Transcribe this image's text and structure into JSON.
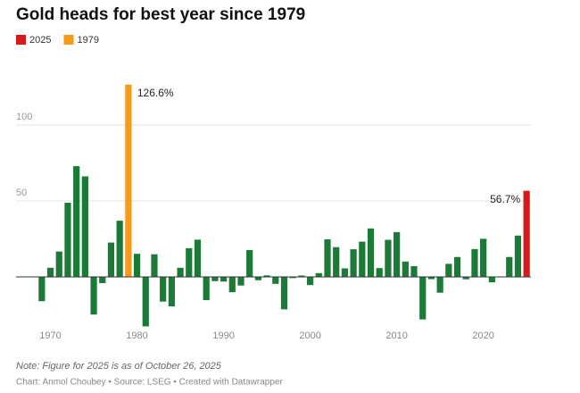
{
  "chart_data": {
    "type": "bar",
    "title": "Gold heads for best year since 1979",
    "note": "Note: Figure for 2025 is as of October 26, 2025",
    "source": "Chart: Anmol Choubey • Source: LSEG • Created with Datawrapper",
    "color": "#1a7a36",
    "highlights": [
      {
        "name": "2025",
        "color": "#d7191c"
      },
      {
        "name": "1979",
        "color": "#f59a1d"
      }
    ],
    "x": [
      1969,
      1970,
      1971,
      1972,
      1973,
      1974,
      1975,
      1976,
      1977,
      1978,
      1979,
      1980,
      1981,
      1982,
      1983,
      1984,
      1985,
      1986,
      1987,
      1988,
      1989,
      1990,
      1991,
      1992,
      1993,
      1994,
      1995,
      1996,
      1997,
      1998,
      1999,
      2000,
      2001,
      2002,
      2003,
      2004,
      2005,
      2006,
      2007,
      2008,
      2009,
      2010,
      2011,
      2012,
      2013,
      2014,
      2015,
      2016,
      2017,
      2018,
      2019,
      2020,
      2021,
      2022,
      2023,
      2024,
      2025
    ],
    "values": [
      -16,
      6,
      16.7,
      48.8,
      72.9,
      66.2,
      -24.8,
      -4.1,
      22.6,
      37,
      126.6,
      15.2,
      -32.6,
      14.9,
      -16.3,
      -19.4,
      6,
      18.9,
      24.5,
      -15.3,
      -2.8,
      -3.1,
      -10.1,
      -5.7,
      17.7,
      -2.2,
      1,
      -4.6,
      -21.4,
      -0.8,
      0.9,
      -5.4,
      2.5,
      24.7,
      19.6,
      5.6,
      18.2,
      23.2,
      31.9,
      5.8,
      24.4,
      29.5,
      10.1,
      7.1,
      -28,
      -1.5,
      -10.4,
      8.6,
      13.1,
      -1.6,
      18.3,
      25.1,
      -3.6,
      -0.3,
      13.1,
      27.2,
      56.7
    ],
    "value_labels": [
      null,
      null,
      null,
      null,
      null,
      null,
      null,
      null,
      null,
      null,
      "126.6%",
      null,
      null,
      null,
      null,
      null,
      null,
      null,
      null,
      null,
      null,
      null,
      null,
      null,
      null,
      null,
      null,
      null,
      null,
      null,
      null,
      null,
      null,
      null,
      null,
      null,
      null,
      null,
      null,
      null,
      null,
      null,
      null,
      null,
      null,
      null,
      null,
      null,
      null,
      null,
      null,
      null,
      null,
      null,
      null,
      null,
      "56.7%"
    ],
    "xlim": [
      1968.5,
      2025.5
    ],
    "xticks": [
      1970,
      1980,
      1990,
      2000,
      2010,
      2020
    ],
    "ylim": [
      -35,
      130
    ],
    "yticks": [
      50,
      100
    ],
    "grid": true
  }
}
